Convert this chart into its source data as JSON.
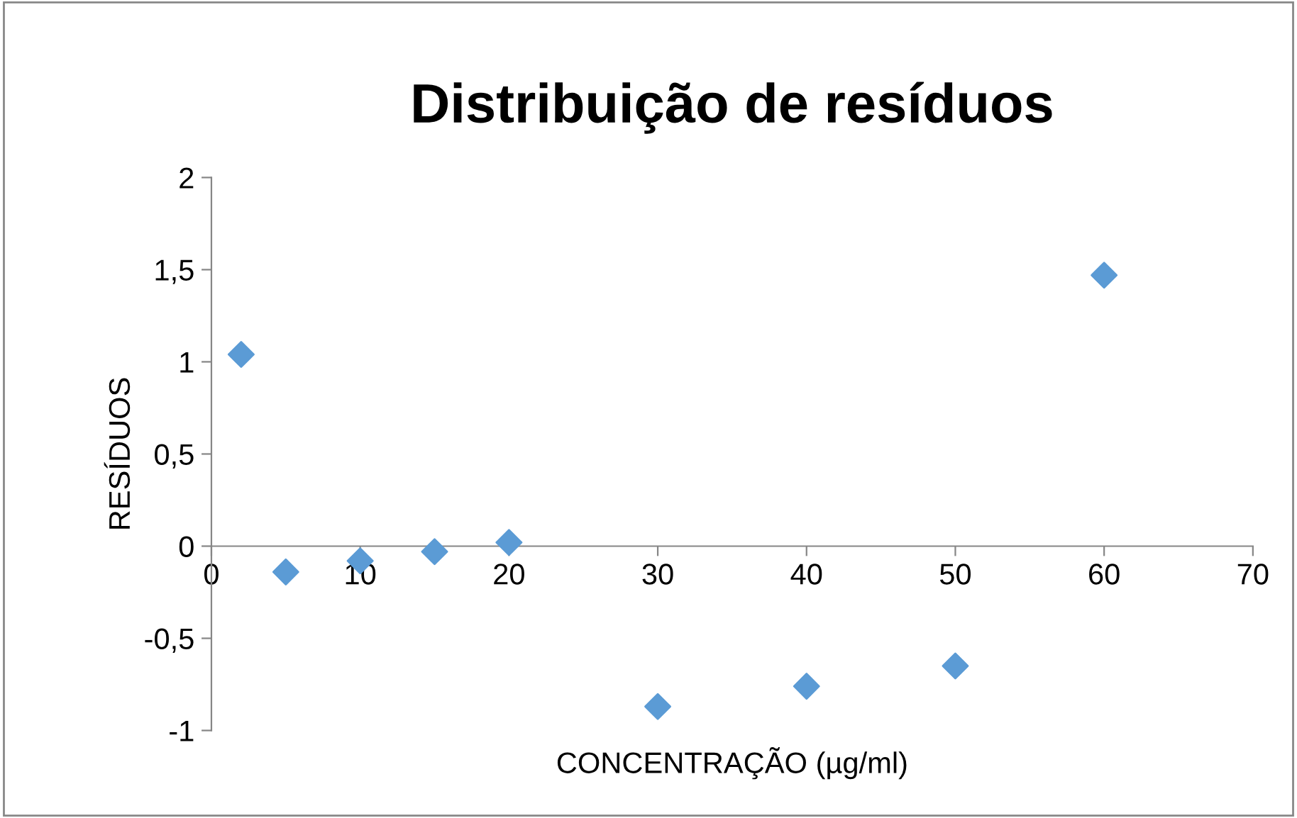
{
  "chart_data": {
    "type": "scatter",
    "title": "Distribuição de resíduos",
    "xlabel": "CONCENTRAÇÃO (µg/ml)",
    "ylabel": "RESÍDUOS",
    "x": [
      2,
      5,
      10,
      15,
      20,
      30,
      40,
      50,
      60
    ],
    "series": [
      {
        "color": "#5b9bd5",
        "values": [
          1.04,
          -0.14,
          -0.08,
          -0.03,
          0.02,
          -0.87,
          -0.76,
          -0.65,
          1.47
        ]
      }
    ],
    "xlim": [
      0,
      70
    ],
    "xticks": [
      0,
      10,
      20,
      30,
      40,
      50,
      60,
      70
    ],
    "ylim": [
      -1,
      2
    ],
    "yticks": [
      {
        "value": -1,
        "label": "-1"
      },
      {
        "value": -0.5,
        "label": "-0,5"
      },
      {
        "value": 0,
        "label": "0"
      },
      {
        "value": 0.5,
        "label": "0,5"
      },
      {
        "value": 1,
        "label": "1"
      },
      {
        "value": 1.5,
        "label": "1,5"
      },
      {
        "value": 2,
        "label": "2"
      }
    ],
    "marker": "diamond",
    "grid": false,
    "legend": false
  }
}
